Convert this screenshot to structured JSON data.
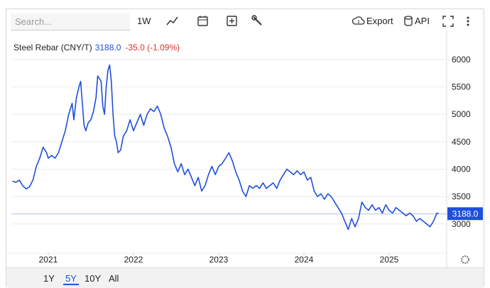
{
  "toolbar": {
    "search_placeholder": "Search...",
    "interval": "1W",
    "export": "Export",
    "api": "API"
  },
  "chart_data": {
    "type": "line",
    "title": "Steel Rebar (CNY/T)",
    "change": "-35.0 (-1.09%)",
    "last": {
      "value": 3188,
      "label": "3188.0"
    },
    "color": "#1f4fdc",
    "change_color": "#d9342b",
    "x": [
      2020.58,
      2020.62,
      2020.66,
      2020.7,
      2020.74,
      2020.78,
      2020.82,
      2020.86,
      2020.9,
      2020.94,
      2020.98,
      2021.0,
      2021.04,
      2021.08,
      2021.12,
      2021.16,
      2021.2,
      2021.24,
      2021.28,
      2021.3,
      2021.33,
      2021.36,
      2021.38,
      2021.4,
      2021.42,
      2021.44,
      2021.47,
      2021.5,
      2021.53,
      2021.56,
      2021.58,
      2021.62,
      2021.64,
      2021.66,
      2021.68,
      2021.7,
      2021.72,
      2021.74,
      2021.76,
      2021.78,
      2021.8,
      2021.82,
      2021.85,
      2021.88,
      2021.92,
      2021.96,
      2022.0,
      2022.04,
      2022.08,
      2022.12,
      2022.16,
      2022.2,
      2022.24,
      2022.28,
      2022.32,
      2022.36,
      2022.4,
      2022.44,
      2022.48,
      2022.52,
      2022.56,
      2022.6,
      2022.64,
      2022.68,
      2022.72,
      2022.76,
      2022.8,
      2022.84,
      2022.88,
      2022.92,
      2022.96,
      2023.0,
      2023.04,
      2023.08,
      2023.12,
      2023.16,
      2023.2,
      2023.24,
      2023.28,
      2023.32,
      2023.36,
      2023.4,
      2023.44,
      2023.48,
      2023.52,
      2023.56,
      2023.6,
      2023.64,
      2023.68,
      2023.72,
      2023.76,
      2023.8,
      2023.84,
      2023.88,
      2023.92,
      2023.96,
      2024.0,
      2024.04,
      2024.08,
      2024.12,
      2024.16,
      2024.2,
      2024.24,
      2024.28,
      2024.32,
      2024.36,
      2024.4,
      2024.44,
      2024.48,
      2024.52,
      2024.56,
      2024.6,
      2024.64,
      2024.68,
      2024.72,
      2024.76,
      2024.8,
      2024.84,
      2024.88,
      2024.92,
      2024.96,
      2025.0,
      2025.04,
      2025.08,
      2025.12,
      2025.16,
      2025.2,
      2025.24,
      2025.28,
      2025.32,
      2025.36,
      2025.4,
      2025.44,
      2025.48,
      2025.52,
      2025.56,
      2025.58
    ],
    "values": [
      3780,
      3760,
      3800,
      3700,
      3640,
      3680,
      3800,
      4050,
      4200,
      4400,
      4300,
      4200,
      4250,
      4200,
      4300,
      4500,
      4700,
      5000,
      5200,
      4900,
      5300,
      5500,
      5600,
      5200,
      4800,
      4700,
      4850,
      4900,
      5050,
      5300,
      5700,
      5600,
      5150,
      5000,
      5500,
      5800,
      5900,
      5600,
      5000,
      4600,
      4500,
      4300,
      4350,
      4600,
      4700,
      4900,
      4700,
      4850,
      5000,
      4800,
      5000,
      5100,
      5050,
      5150,
      5000,
      4750,
      4600,
      4400,
      4100,
      3950,
      4100,
      3900,
      4000,
      3850,
      3700,
      3850,
      3600,
      3700,
      3900,
      4050,
      3900,
      4050,
      4100,
      4200,
      4300,
      4150,
      3950,
      3800,
      3600,
      3500,
      3700,
      3650,
      3700,
      3650,
      3750,
      3650,
      3700,
      3750,
      3650,
      3800,
      3900,
      4000,
      3950,
      3900,
      3970,
      3900,
      3950,
      3800,
      3850,
      3600,
      3500,
      3550,
      3450,
      3550,
      3500,
      3400,
      3300,
      3200,
      3050,
      2900,
      3100,
      2950,
      3100,
      3400,
      3300,
      3250,
      3350,
      3250,
      3300,
      3200,
      3350,
      3250,
      3200,
      3300,
      3250,
      3200,
      3150,
      3200,
      3150,
      3050,
      3100,
      3050,
      3000,
      2950,
      3050,
      3200,
      3188
    ],
    "xlim": [
      2020.567,
      2025.675
    ],
    "xticks": [
      2021,
      2022,
      2023,
      2024,
      2025
    ],
    "ylim": [
      2480,
      6230
    ],
    "yticks": [
      3000,
      3500,
      4000,
      4500,
      5000,
      5500,
      6000
    ],
    "grid": true
  },
  "range_buttons": [
    "1Y",
    "5Y",
    "10Y",
    "All"
  ]
}
